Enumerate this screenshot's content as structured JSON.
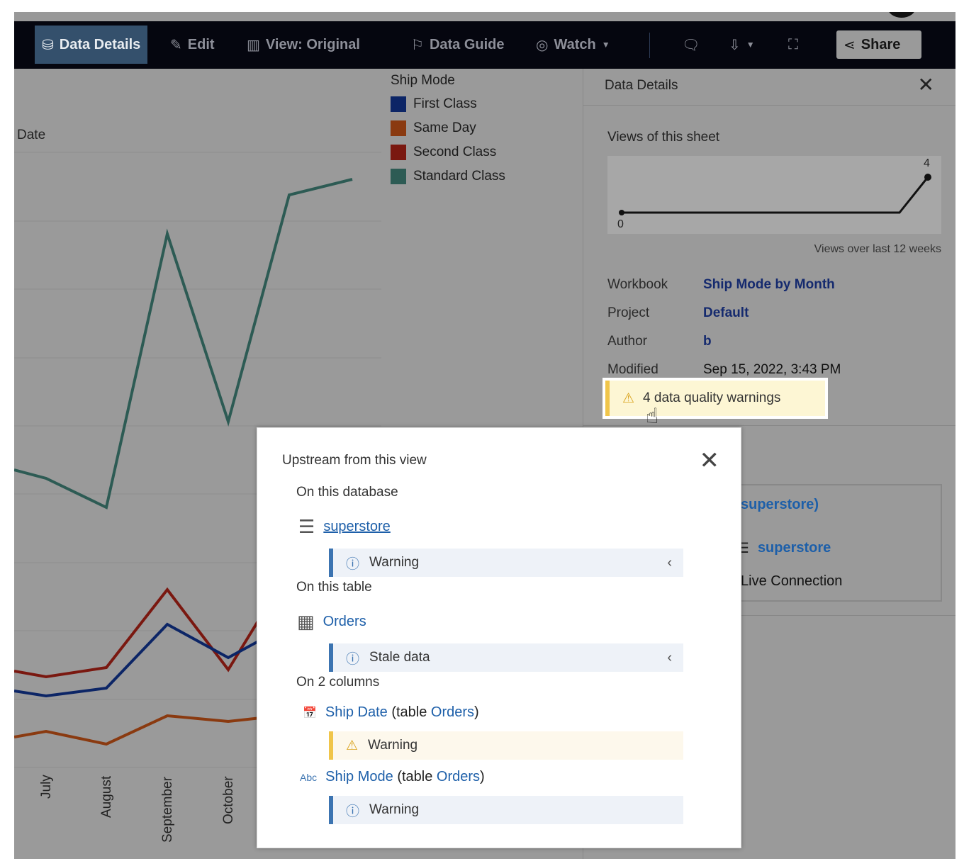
{
  "toolbar": {
    "data_details": "Data Details",
    "edit": "Edit",
    "view": "View: Original",
    "data_guide": "Data Guide",
    "watch": "Watch",
    "share": "Share"
  },
  "chart": {
    "date_label": "Date",
    "months": [
      "July",
      "August",
      "September",
      "October"
    ],
    "legend_title": "Ship Mode",
    "legend": [
      {
        "label": "First Class",
        "color": "#0c2566"
      },
      {
        "label": "Same Day",
        "color": "#8a3a10"
      },
      {
        "label": "Second Class",
        "color": "#7a1810"
      },
      {
        "label": "Standard Class",
        "color": "#2d5b54"
      }
    ]
  },
  "panel": {
    "title": "Data Details",
    "views_title": "Views of this sheet",
    "spark_max": "4",
    "spark_min": "0",
    "weeks": "Views over last 12 weeks",
    "workbook_k": "Workbook",
    "workbook_v": "Ship Mode by Month",
    "project_k": "Project",
    "project_v": "Default",
    "author_k": "Author",
    "author_v": "b",
    "modified_k": "Modified",
    "modified_v": "Sep 15, 2022, 3:43 PM",
    "warnings": "4 data quality warnings",
    "ds_name": "superstore)",
    "ds_db": "superstore",
    "ds_conn": "Live Connection"
  },
  "popup": {
    "title": "Upstream from this view",
    "on_db": "On this database",
    "db": "superstore",
    "db_warn": "Warning",
    "on_table": "On this table",
    "table": "Orders",
    "table_warn": "Stale data",
    "on_cols": "On 2 columns",
    "col1": "Ship Date",
    "col1_pre": "(table ",
    "col1_tbl": "Orders",
    "col1_post": ")",
    "col1_warn": "Warning",
    "col2_type": "Abc",
    "col2": "Ship Mode",
    "col2_pre": "(table ",
    "col2_tbl": "Orders",
    "col2_post": ")",
    "col2_warn": "Warning"
  }
}
